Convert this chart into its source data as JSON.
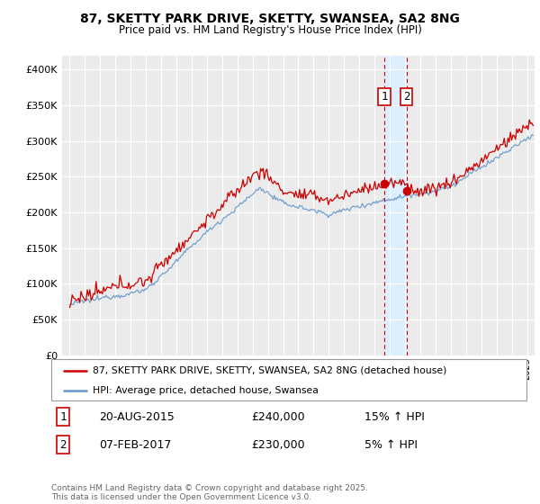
{
  "title": "87, SKETTY PARK DRIVE, SKETTY, SWANSEA, SA2 8NG",
  "subtitle": "Price paid vs. HM Land Registry's House Price Index (HPI)",
  "legend_line1": "87, SKETTY PARK DRIVE, SKETTY, SWANSEA, SA2 8NG (detached house)",
  "legend_line2": "HPI: Average price, detached house, Swansea",
  "sale1_date": "20-AUG-2015",
  "sale1_price": "£240,000",
  "sale1_hpi": "15% ↑ HPI",
  "sale2_date": "07-FEB-2017",
  "sale2_price": "£230,000",
  "sale2_hpi": "5% ↑ HPI",
  "sale1_x": 2015.64,
  "sale2_x": 2017.09,
  "sale1_y": 240000,
  "sale2_y": 230000,
  "copyright": "Contains HM Land Registry data © Crown copyright and database right 2025.\nThis data is licensed under the Open Government Licence v3.0.",
  "line_color_property": "#cc0000",
  "line_color_hpi": "#6699cc",
  "highlight_color": "#ddeeff",
  "vline_color": "#cc0000",
  "ylim": [
    0,
    420000
  ],
  "xlim_start": 1994.5,
  "xlim_end": 2025.5,
  "background_color": "#ebebeb",
  "title_fontsize": 10,
  "subtitle_fontsize": 8.5
}
